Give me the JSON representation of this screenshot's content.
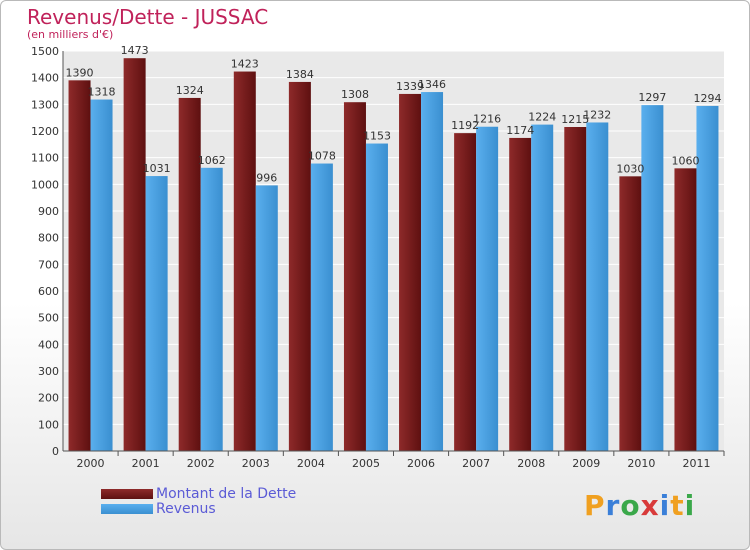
{
  "chart_data": {
    "type": "bar",
    "title": "Revenus/Dette - JUSSAC",
    "subtitle": "(en milliers d'€)",
    "categories": [
      "2000",
      "2001",
      "2002",
      "2003",
      "2004",
      "2005",
      "2006",
      "2007",
      "2008",
      "2009",
      "2010",
      "2011"
    ],
    "series": [
      {
        "name": "Montant de la Dette",
        "color": "#7a1c1c",
        "values": [
          1390,
          1473,
          1324,
          1423,
          1384,
          1308,
          1339,
          1192,
          1174,
          1215,
          1030,
          1060
        ]
      },
      {
        "name": "Revenus",
        "color": "#4a9fe0",
        "values": [
          1318,
          1031,
          1062,
          996,
          1078,
          1153,
          1346,
          1216,
          1224,
          1232,
          1297,
          1294
        ]
      }
    ],
    "yticks": [
      0,
      100,
      200,
      300,
      400,
      500,
      600,
      700,
      800,
      900,
      1000,
      1100,
      1200,
      1300,
      1400,
      1500
    ],
    "ylim": [
      0,
      1500
    ],
    "grid": true,
    "legend_position": "bottom-left"
  },
  "logo": {
    "letters": [
      "P",
      "r",
      "o",
      "x",
      "i",
      "t",
      "i"
    ],
    "colors": [
      "#f0a020",
      "#3a7fd8",
      "#3aa84a",
      "#d83a3a",
      "#3a7fd8",
      "#f0a020",
      "#3aa84a"
    ]
  }
}
